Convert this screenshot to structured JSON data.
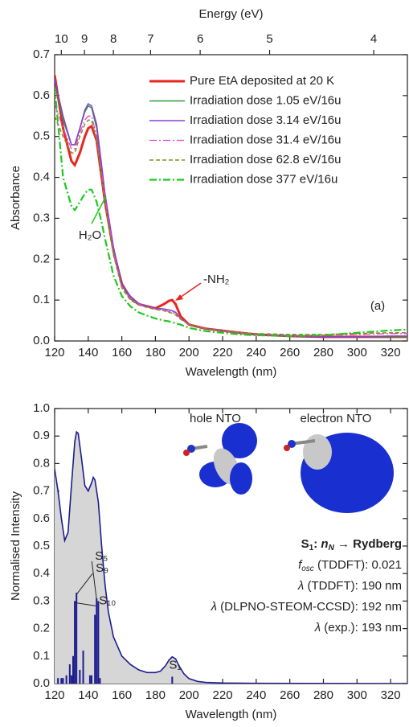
{
  "chart_data": [
    {
      "type": "line",
      "title": "Energy (eV)",
      "x_label": "Wavelength (nm)",
      "y_label": "Absorbance",
      "x": [
        120,
        125,
        130,
        132,
        135,
        138,
        140,
        142,
        145,
        148,
        150,
        155,
        160,
        165,
        170,
        175,
        180,
        185,
        188,
        190,
        192,
        195,
        200,
        210,
        220,
        230,
        240,
        260,
        280,
        300,
        320,
        330
      ],
      "series": [
        {
          "name": "Pure EtA deposited at 20 K",
          "color": "#e8261f",
          "dash": "solid",
          "width": 3,
          "values": [
            0.65,
            0.52,
            0.44,
            0.43,
            0.46,
            0.5,
            0.52,
            0.525,
            0.49,
            0.4,
            0.34,
            0.22,
            0.14,
            0.105,
            0.09,
            0.085,
            0.08,
            0.09,
            0.098,
            0.1,
            0.09,
            0.06,
            0.04,
            0.03,
            0.025,
            0.02,
            0.016,
            0.012,
            0.01,
            0.01,
            0.01,
            0.01
          ]
        },
        {
          "name": "Irradiation dose 1.05 eV/16u",
          "color": "#2e9a3a",
          "dash": "solid",
          "width": 1.5,
          "values": [
            0.64,
            0.54,
            0.48,
            0.48,
            0.52,
            0.56,
            0.575,
            0.57,
            0.52,
            0.42,
            0.35,
            0.22,
            0.14,
            0.105,
            0.09,
            0.085,
            0.08,
            0.078,
            0.076,
            0.074,
            0.07,
            0.055,
            0.04,
            0.03,
            0.025,
            0.02,
            0.016,
            0.012,
            0.01,
            0.01,
            0.01,
            0.01
          ]
        },
        {
          "name": "Irradiation dose 3.14 eV/16u",
          "color": "#8a3fd1",
          "dash": "solid",
          "width": 1.5,
          "values": [
            0.64,
            0.55,
            0.48,
            0.48,
            0.52,
            0.565,
            0.58,
            0.575,
            0.53,
            0.43,
            0.36,
            0.23,
            0.14,
            0.11,
            0.092,
            0.085,
            0.08,
            0.078,
            0.076,
            0.074,
            0.07,
            0.055,
            0.04,
            0.03,
            0.025,
            0.02,
            0.016,
            0.012,
            0.01,
            0.01,
            0.012,
            0.012
          ]
        },
        {
          "name": "Irradiation dose 31.4 eV/16u",
          "color": "#e83fd8",
          "dash": "dashdot",
          "width": 1.3,
          "values": [
            0.58,
            0.52,
            0.47,
            0.47,
            0.51,
            0.54,
            0.55,
            0.55,
            0.5,
            0.41,
            0.35,
            0.22,
            0.13,
            0.105,
            0.09,
            0.083,
            0.078,
            0.075,
            0.072,
            0.07,
            0.066,
            0.055,
            0.04,
            0.03,
            0.024,
            0.02,
            0.016,
            0.014,
            0.014,
            0.016,
            0.018,
            0.018
          ]
        },
        {
          "name": "Irradiation dose 62.8 eV/16u",
          "color": "#8a8a1e",
          "dash": "dash",
          "width": 1.5,
          "values": [
            0.55,
            0.5,
            0.46,
            0.46,
            0.5,
            0.53,
            0.54,
            0.54,
            0.49,
            0.4,
            0.34,
            0.21,
            0.13,
            0.1,
            0.088,
            0.082,
            0.077,
            0.074,
            0.07,
            0.068,
            0.064,
            0.053,
            0.04,
            0.03,
            0.024,
            0.02,
            0.018,
            0.016,
            0.016,
            0.018,
            0.02,
            0.02
          ]
        },
        {
          "name": "Irradiation dose 377 eV/16u",
          "color": "#1ec81e",
          "dash": "dashdot",
          "width": 2.2,
          "values": [
            0.62,
            0.4,
            0.33,
            0.32,
            0.34,
            0.36,
            0.37,
            0.37,
            0.34,
            0.29,
            0.25,
            0.16,
            0.11,
            0.085,
            0.07,
            0.062,
            0.055,
            0.05,
            0.048,
            0.046,
            0.043,
            0.04,
            0.032,
            0.024,
            0.02,
            0.016,
            0.014,
            0.012,
            0.014,
            0.02,
            0.026,
            0.028
          ]
        }
      ],
      "xlim": [
        120,
        330
      ],
      "xticks": [
        120,
        140,
        160,
        180,
        200,
        220,
        240,
        260,
        280,
        300,
        320
      ],
      "x2ticks": [
        10,
        9,
        8,
        7,
        6,
        5,
        4
      ],
      "ylim": [
        0,
        0.7
      ],
      "yticks": [
        {
          "value": 0,
          "label": "0.0"
        },
        0.1,
        0.2,
        0.3,
        0.4,
        0.5,
        0.6,
        0.7
      ],
      "annotations": [
        {
          "text": "H₂O",
          "color": "#1ec81e"
        },
        {
          "text": "-NH₂",
          "color": "#e8261f"
        },
        {
          "text": "(a)",
          "color": "#222"
        }
      ]
    },
    {
      "type": "line",
      "x_label": "Wavelength (nm)",
      "y_label": "Normalised Intensity",
      "color": "#1c1c8f",
      "fill": "#d6d6d6",
      "x": [
        120,
        122,
        124,
        126,
        128,
        130,
        132,
        133,
        134,
        136,
        138,
        140,
        142,
        143,
        144,
        146,
        148,
        150,
        152,
        155,
        160,
        165,
        170,
        175,
        180,
        183,
        186,
        188,
        190,
        192,
        194,
        197,
        200,
        205,
        210,
        220,
        240,
        330
      ],
      "values": [
        0.78,
        0.7,
        0.6,
        0.52,
        0.55,
        0.72,
        0.88,
        0.915,
        0.91,
        0.82,
        0.72,
        0.7,
        0.73,
        0.75,
        0.74,
        0.66,
        0.5,
        0.36,
        0.26,
        0.17,
        0.1,
        0.07,
        0.05,
        0.04,
        0.04,
        0.045,
        0.065,
        0.085,
        0.097,
        0.09,
        0.065,
        0.035,
        0.018,
        0.008,
        0.004,
        0.002,
        0.001,
        0
      ],
      "sticks": {
        "color": "#1c1c8f",
        "x": [
          122,
          124,
          125,
          127,
          129,
          130,
          131,
          132,
          133,
          135,
          137,
          141,
          142,
          144,
          145,
          146,
          147,
          190
        ],
        "values": [
          0.02,
          0.02,
          0.02,
          0.03,
          0.07,
          0.03,
          0.1,
          0.3,
          0.33,
          0.05,
          0.12,
          0.03,
          0.03,
          0.25,
          0.31,
          0.3,
          0.02,
          0.025
        ],
        "labels": [
          null,
          null,
          null,
          null,
          null,
          null,
          null,
          "S₁₀",
          "S₉",
          null,
          null,
          null,
          null,
          null,
          "S₅",
          null,
          null,
          "S₁"
        ]
      },
      "xlim": [
        120,
        330
      ],
      "xticks": [
        120,
        140,
        160,
        180,
        200,
        220,
        240,
        260,
        280,
        300,
        320
      ],
      "ylim": [
        0,
        1.0
      ],
      "yticks": [
        {
          "value": 0,
          "label": "0.0"
        },
        0.1,
        0.2,
        0.3,
        0.4,
        0.5,
        0.6,
        0.7,
        0.8,
        0.9,
        {
          "value": 1,
          "label": "1.0"
        }
      ],
      "nto_labels": [
        "hole NTO",
        "electron NTO"
      ],
      "info": [
        [
          "S",
          "1",
          ": ",
          "n",
          "N",
          " → Rydberg"
        ],
        [
          "f",
          "osc",
          " (TDDFT): 0.021"
        ],
        [
          "λ",
          " (TDDFT): 190 nm"
        ],
        [
          "λ",
          " (DLPNO-STEOM-CCSD): 192 nm"
        ],
        [
          "λ",
          " (exp.): 193 nm"
        ]
      ]
    }
  ]
}
